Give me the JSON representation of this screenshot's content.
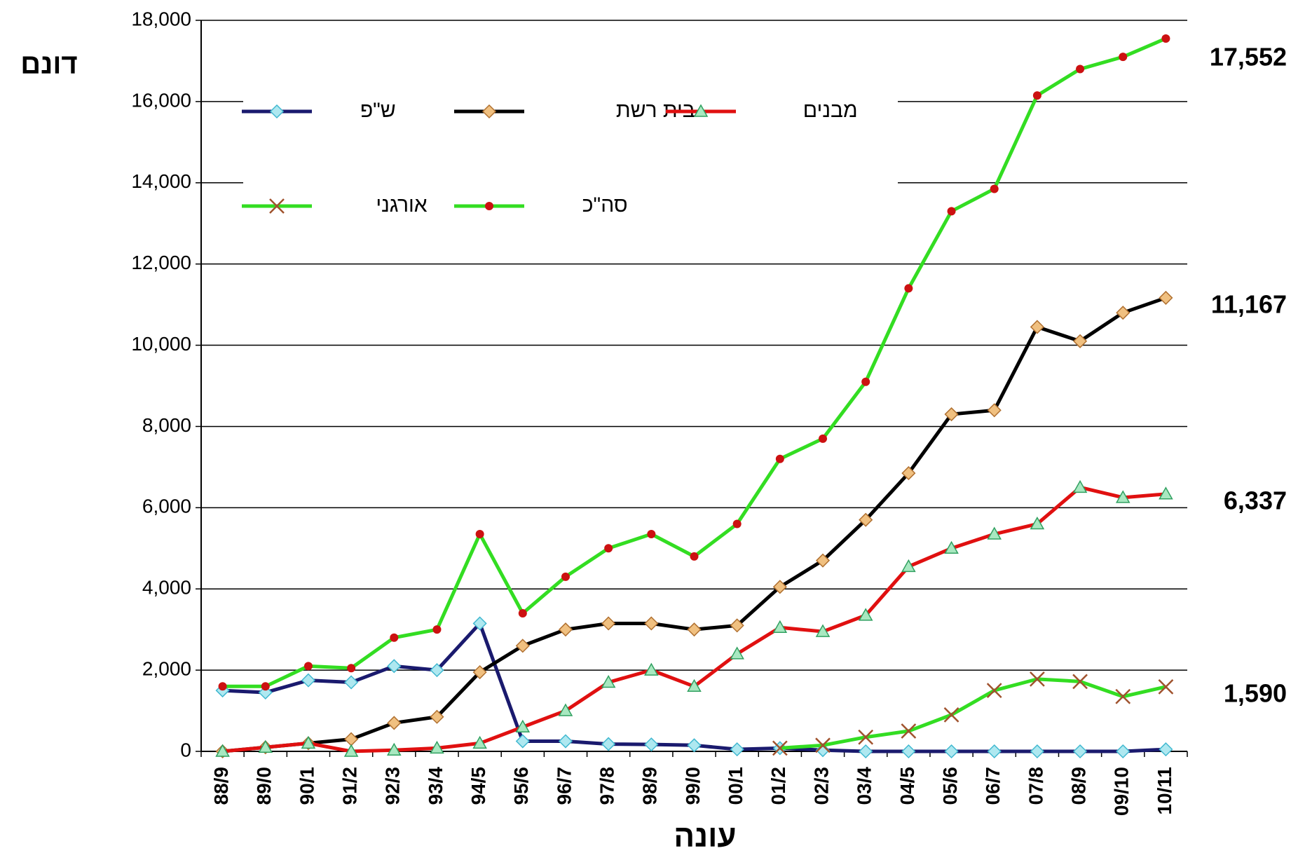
{
  "chart_data": {
    "type": "line",
    "y_label": "דונם",
    "x_label": "עונה",
    "categories": [
      "88/9",
      "89/0",
      "90/1",
      "91/2",
      "92/3",
      "93/4",
      "94/5",
      "95/6",
      "96/7",
      "97/8",
      "98/9",
      "99/0",
      "00/1",
      "01/2",
      "02/3",
      "03/4",
      "04/5",
      "05/6",
      "06/7",
      "07/8",
      "08/9",
      "09/10",
      "10/11"
    ],
    "series": [
      {
        "name": "ש\"פ",
        "color": "#1a1a6e",
        "marker": "diamond",
        "marker_color": "#aee8f0",
        "values": [
          1500,
          1450,
          1750,
          1700,
          2100,
          2000,
          3150,
          250,
          250,
          180,
          170,
          150,
          50,
          80,
          30,
          0,
          0,
          0,
          0,
          0,
          0,
          0,
          50
        ]
      },
      {
        "name": "בית רשת",
        "color": "#000000",
        "marker": "diamond",
        "marker_color": "#f0c080",
        "values": [
          0,
          100,
          200,
          300,
          700,
          850,
          1950,
          2600,
          3000,
          3150,
          3150,
          3000,
          3100,
          4050,
          4700,
          5700,
          6850,
          8300,
          8400,
          10450,
          10100,
          10800,
          11167
        ]
      },
      {
        "name": "מבנים",
        "color": "#e01010",
        "marker": "triangle",
        "marker_color": "#a8e8c0",
        "values": [
          0,
          100,
          200,
          0,
          30,
          80,
          200,
          600,
          1000,
          1700,
          2000,
          1600,
          2400,
          3050,
          2950,
          3350,
          4550,
          5000,
          5350,
          5600,
          6500,
          6250,
          6337
        ]
      },
      {
        "name": "אורגני",
        "color": "#33dd22",
        "marker": "x",
        "marker_color": "#a0522d",
        "values": [
          null,
          null,
          null,
          null,
          null,
          null,
          null,
          null,
          null,
          null,
          null,
          null,
          null,
          80,
          150,
          350,
          500,
          900,
          1500,
          1780,
          1720,
          1350,
          1590
        ]
      },
      {
        "name": "סה\"כ",
        "color": "#33dd22",
        "marker": "dot",
        "marker_color": "#cc1111",
        "values": [
          1600,
          1600,
          2100,
          2050,
          2800,
          3000,
          5350,
          3400,
          4300,
          5000,
          5350,
          4800,
          5600,
          7200,
          7700,
          9100,
          11400,
          13300,
          13850,
          16150,
          16800,
          17100,
          17552
        ]
      }
    ],
    "annotations": [
      {
        "label": "17,552",
        "value": 17552
      },
      {
        "label": "11,167",
        "value": 11167
      },
      {
        "label": "6,337",
        "value": 6337
      },
      {
        "label": "1,590",
        "value": 1590
      }
    ],
    "ylim": [
      0,
      18000
    ],
    "yticks": [
      {
        "value": 0,
        "label": "0"
      },
      {
        "value": 2000,
        "label": "2,000"
      },
      {
        "value": 4000,
        "label": "4,000"
      },
      {
        "value": 6000,
        "label": "6,000"
      },
      {
        "value": 8000,
        "label": "8,000"
      },
      {
        "value": 10000,
        "label": "10,000"
      },
      {
        "value": 12000,
        "label": "12,000"
      },
      {
        "value": 14000,
        "label": "14,000"
      },
      {
        "value": 16000,
        "label": "16,000"
      },
      {
        "value": 18000,
        "label": "18,000"
      }
    ],
    "grid": true
  }
}
